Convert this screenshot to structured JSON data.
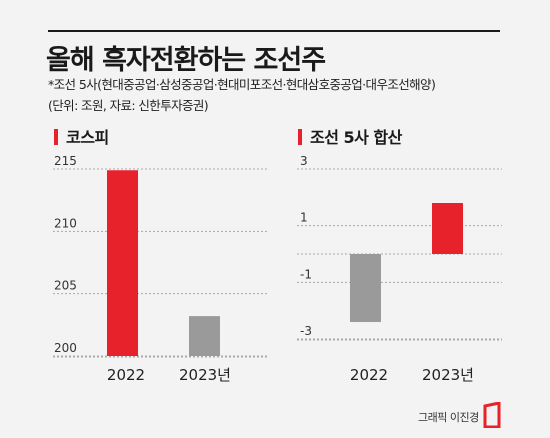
{
  "title": "올해 흑자전환하는 조선주",
  "note_companies": "*조선 5사(현대중공업·삼성중공업·현대미포조선·현대삼호중공업·대우조선해양)",
  "note_unit": "(단위: 조원, 자료: 신한투자증권)",
  "credit": "그래픽 이진경",
  "colors": {
    "accent": "#e8222a",
    "bar_2023": "#9a9a9b",
    "grid": "#a9a9a9"
  },
  "chart_data": [
    {
      "type": "bar",
      "title": "코스피",
      "categories": [
        "2022",
        "2023년"
      ],
      "values": [
        214.9,
        203.2
      ],
      "ylim": [
        200,
        215
      ],
      "yticks": [
        "215",
        "210",
        "205",
        "200"
      ],
      "bar_colors": [
        "#e8222a",
        "#9a9a9b"
      ],
      "grid": true
    },
    {
      "type": "bar",
      "title": "조선 5사 합산",
      "categories": [
        "2022",
        "2023년"
      ],
      "values": [
        -2.4,
        1.8
      ],
      "ylim": [
        -3,
        3
      ],
      "yticks": [
        "3",
        "1",
        "-1",
        "-3"
      ],
      "bar_colors": [
        "#9a9a9b",
        "#e8222a"
      ],
      "grid": true
    }
  ]
}
